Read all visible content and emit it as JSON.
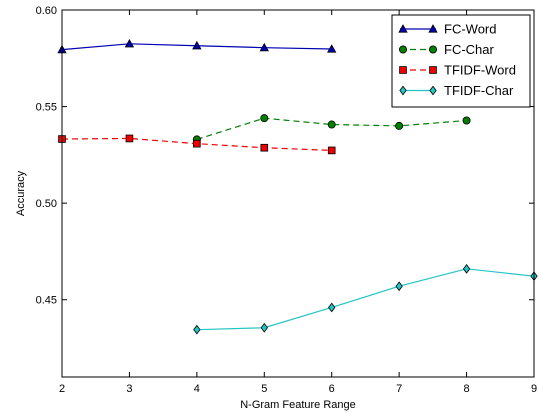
{
  "chart_data": {
    "type": "line",
    "title": "",
    "xlabel": "N-Gram Feature Range",
    "ylabel": "Accuracy",
    "xlim": [
      2,
      9
    ],
    "ylim": [
      0.41,
      0.6
    ],
    "x_ticks": [
      2,
      3,
      4,
      5,
      6,
      7,
      8,
      9
    ],
    "y_ticks": [
      0.45,
      0.5,
      0.55,
      0.6
    ],
    "y_tick_labels": [
      "0.45",
      "0.50",
      "0.55",
      "0.60"
    ],
    "grid": false,
    "legend_position": "top-right",
    "series": [
      {
        "name": "FC-Word",
        "color": "#0000b3",
        "linestyle": "solid",
        "marker": "triangle",
        "x": [
          2,
          3,
          4,
          5,
          6
        ],
        "y": [
          0.5795,
          0.5825,
          0.5815,
          0.5805,
          0.5798
        ]
      },
      {
        "name": "FC-Char",
        "color": "#007f00",
        "linestyle": "dashed",
        "marker": "circle",
        "x": [
          4,
          5,
          6,
          7,
          8
        ],
        "y": [
          0.533,
          0.544,
          0.5407,
          0.54,
          0.5428
        ]
      },
      {
        "name": "TFIDF-Word",
        "color": "#ee0000",
        "linestyle": "dashed",
        "marker": "square",
        "x": [
          2,
          3,
          4,
          5,
          6
        ],
        "y": [
          0.5332,
          0.5335,
          0.5308,
          0.5287,
          0.5273
        ]
      },
      {
        "name": "TFIDF-Char",
        "color": "#22c4c4",
        "linestyle": "solid",
        "marker": "diamond",
        "x": [
          4,
          5,
          6,
          7,
          8,
          9
        ],
        "y": [
          0.4345,
          0.4355,
          0.446,
          0.457,
          0.466,
          0.4622
        ]
      }
    ]
  }
}
